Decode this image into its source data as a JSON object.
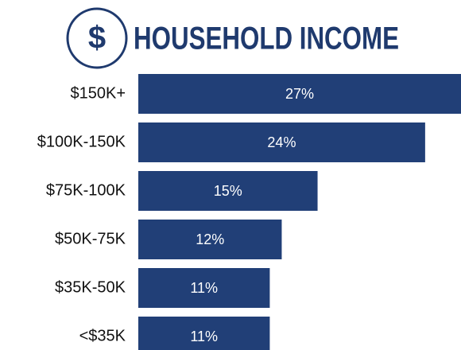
{
  "chart_data": {
    "type": "bar",
    "orientation": "horizontal",
    "title": "HOUSEHOLD INCOME",
    "title_icon": "$",
    "categories": [
      "$150K+",
      "$100K-150K",
      "$75K-100K",
      "$50K-75K",
      "$35K-50K",
      "<$35K"
    ],
    "values": [
      27,
      24,
      15,
      12,
      11,
      11
    ],
    "value_labels": [
      "27%",
      "24%",
      "15%",
      "12%",
      "11%",
      "11%"
    ],
    "color": "#213f77"
  }
}
